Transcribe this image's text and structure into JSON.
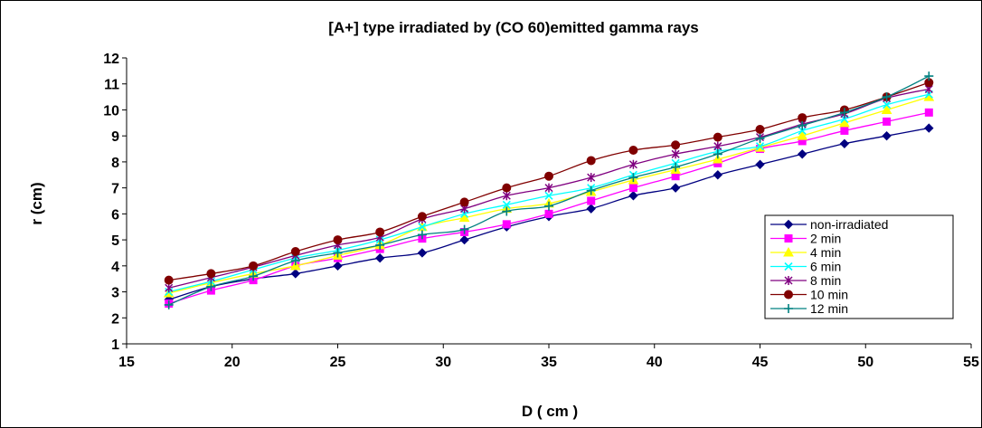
{
  "chart_data": {
    "type": "line",
    "title": "[A+] type irradiated by (CO 60)emitted gamma rays",
    "xlabel": "D ( cm )",
    "ylabel": "r (cm)",
    "xlim": [
      15,
      55
    ],
    "ylim": [
      1,
      12
    ],
    "xticks": [
      15,
      20,
      25,
      30,
      35,
      40,
      45,
      50,
      55
    ],
    "yticks": [
      1,
      2,
      3,
      4,
      5,
      6,
      7,
      8,
      9,
      10,
      11,
      12
    ],
    "grid": false,
    "legend_position": "right",
    "x": [
      17,
      19,
      21,
      23,
      25,
      27,
      29,
      31,
      33,
      35,
      37,
      39,
      41,
      43,
      45,
      47,
      49,
      51,
      53
    ],
    "series": [
      {
        "name": "non-irradiated",
        "color": "#000080",
        "marker": "diamond",
        "values": [
          2.7,
          3.2,
          3.5,
          3.7,
          4.0,
          4.3,
          4.5,
          5.0,
          5.5,
          5.9,
          6.2,
          6.7,
          7.0,
          7.5,
          7.9,
          8.3,
          8.7,
          9.0,
          9.3
        ]
      },
      {
        "name": "2 min",
        "color": "#FF00FF",
        "marker": "square",
        "values": [
          2.55,
          3.05,
          3.45,
          4.0,
          4.3,
          4.65,
          5.05,
          5.3,
          5.6,
          6.0,
          6.5,
          7.0,
          7.45,
          7.95,
          8.5,
          8.8,
          9.2,
          9.55,
          9.9
        ]
      },
      {
        "name": "4 min",
        "color": "#FFFF00",
        "marker": "triangle",
        "values": [
          2.95,
          3.35,
          3.7,
          4.0,
          4.4,
          4.8,
          5.5,
          5.85,
          6.2,
          6.4,
          6.85,
          7.3,
          7.7,
          8.1,
          8.55,
          9.0,
          9.5,
          10.0,
          10.5
        ]
      },
      {
        "name": "6 min",
        "color": "#00FFFF",
        "marker": "x",
        "values": [
          3.0,
          3.4,
          3.85,
          4.3,
          4.6,
          5.0,
          5.5,
          6.0,
          6.35,
          6.7,
          7.0,
          7.5,
          7.95,
          8.4,
          8.6,
          9.2,
          9.65,
          10.2,
          10.6
        ]
      },
      {
        "name": "8 min",
        "color": "#800080",
        "marker": "star",
        "values": [
          3.15,
          3.55,
          3.95,
          4.4,
          4.8,
          5.1,
          5.8,
          6.2,
          6.7,
          7.0,
          7.4,
          7.9,
          8.3,
          8.6,
          8.95,
          9.45,
          9.85,
          10.45,
          10.8
        ]
      },
      {
        "name": "10 min",
        "color": "#800000",
        "marker": "circle",
        "values": [
          3.45,
          3.7,
          4.0,
          4.55,
          5.0,
          5.3,
          5.9,
          6.45,
          7.0,
          7.45,
          8.05,
          8.45,
          8.65,
          8.95,
          9.25,
          9.7,
          10.0,
          10.5,
          11.05
        ]
      },
      {
        "name": "12 min",
        "color": "#008080",
        "marker": "plus",
        "values": [
          2.5,
          3.2,
          3.6,
          4.2,
          4.5,
          4.8,
          5.2,
          5.4,
          6.1,
          6.3,
          6.9,
          7.4,
          7.8,
          8.3,
          8.9,
          9.4,
          9.9,
          10.5,
          11.3
        ]
      }
    ]
  }
}
